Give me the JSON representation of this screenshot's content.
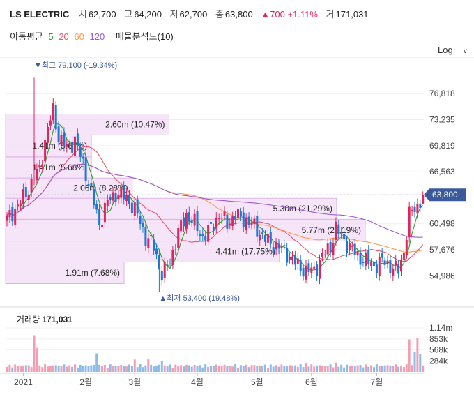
{
  "header": {
    "name": "LS ELECTRIC",
    "open_label": "시",
    "open": "62,700",
    "high_label": "고",
    "high": "64,200",
    "low_label": "저",
    "low": "62,700",
    "close_label": "종",
    "close": "63,800",
    "change": "▲700 +1.11%",
    "volume_label": "거",
    "volume": "171,031"
  },
  "indicators": {
    "ma_label": "이동평균",
    "ma5": "5",
    "ma20": "20",
    "ma60": "60",
    "ma120": "120",
    "profile_label": "매물분석도(10)"
  },
  "colors": {
    "up": "#e0245e",
    "down": "#1f77d4",
    "ma5": "#2ca02c",
    "ma20": "#e9546b",
    "ma60": "#ff9b4a",
    "ma120": "#9b59d0",
    "band": "#f3dcf7"
  },
  "scale_button": {
    "label": "Log",
    "icon": "chevron-down-icon"
  },
  "chart_data": {
    "type": "candlestick",
    "y_scale": "log",
    "yticks": [
      76818,
      73235,
      69819,
      66563,
      63800,
      60498,
      57676,
      54986
    ],
    "ytick_labels": [
      "76,818",
      "73,235",
      "69,819",
      "66,563",
      "63,800",
      "60,498",
      "57,676",
      "54,986"
    ],
    "current_price": "63,800",
    "x_labels": [
      "2021",
      "2월",
      "3월",
      "4월",
      "5월",
      "6월",
      "7월"
    ],
    "high_annotation": "최고 79,100 (-19.34%)",
    "low_annotation": "최저 53,400 (19.48%)",
    "volume_profile": [
      {
        "label": "1.91m (7.68%)",
        "lo": 54200,
        "hi": 56400,
        "share": 0.29
      },
      {
        "label": "4.41m (17.75%)",
        "lo": 56400,
        "hi": 58600,
        "share": 0.67
      },
      {
        "label": "5.77m (23.19%)",
        "lo": 58600,
        "hi": 61000,
        "share": 0.88
      },
      {
        "label": "5.30m (21.29%)",
        "lo": 61000,
        "hi": 63400,
        "share": 0.81
      },
      {
        "label": "2.06m (8.28%)",
        "lo": 63400,
        "hi": 65800,
        "share": 0.31
      },
      {
        "label": "1.41m (5.68%)",
        "lo": 65800,
        "hi": 68400,
        "share": 0.21
      },
      {
        "label": "1.41m (5.67%)",
        "lo": 68400,
        "hi": 71200,
        "share": 0.21
      },
      {
        "label": "2.60m (10.47%)",
        "lo": 71200,
        "hi": 74000,
        "share": 0.4
      }
    ],
    "anchors": [
      [
        0,
        61000
      ],
      [
        4,
        62500
      ],
      [
        8,
        64500
      ],
      [
        12,
        67000
      ],
      [
        15,
        72000
      ],
      [
        17,
        74500
      ],
      [
        19,
        71000
      ],
      [
        22,
        69500
      ],
      [
        25,
        70500
      ],
      [
        28,
        67500
      ],
      [
        31,
        64000
      ],
      [
        34,
        60500
      ],
      [
        37,
        63000
      ],
      [
        40,
        64000
      ],
      [
        44,
        63500
      ],
      [
        48,
        61500
      ],
      [
        51,
        59000
      ],
      [
        54,
        58000
      ],
      [
        57,
        55000
      ],
      [
        60,
        56500
      ],
      [
        63,
        59500
      ],
      [
        66,
        61500
      ],
      [
        69,
        60500
      ],
      [
        72,
        59000
      ],
      [
        75,
        60000
      ],
      [
        78,
        61500
      ],
      [
        81,
        60500
      ],
      [
        84,
        61500
      ],
      [
        87,
        61000
      ],
      [
        90,
        60500
      ],
      [
        93,
        59500
      ],
      [
        96,
        58500
      ],
      [
        100,
        58000
      ],
      [
        104,
        57000
      ],
      [
        107,
        56000
      ],
      [
        110,
        55500
      ],
      [
        113,
        55500
      ],
      [
        116,
        57000
      ],
      [
        119,
        58000
      ],
      [
        121,
        60000
      ],
      [
        123,
        59000
      ],
      [
        126,
        58000
      ],
      [
        129,
        57000
      ],
      [
        132,
        56500
      ],
      [
        135,
        56000
      ],
      [
        138,
        56500
      ],
      [
        141,
        56000
      ],
      [
        144,
        55500
      ],
      [
        146,
        57500
      ],
      [
        148,
        61500
      ],
      [
        151,
        62500
      ],
      [
        153,
        63800
      ]
    ],
    "volume_axis": [
      "1.14m",
      "853k",
      "568k",
      "284k"
    ],
    "volume_title": "거래량",
    "volume_value": "171,031",
    "volume_max": 1140000,
    "volume_spikes": [
      [
        10,
        950000
      ],
      [
        11,
        620000
      ],
      [
        33,
        480000
      ],
      [
        47,
        320000
      ],
      [
        52,
        330000
      ],
      [
        57,
        280000
      ],
      [
        110,
        220000
      ],
      [
        121,
        240000
      ],
      [
        148,
        840000
      ],
      [
        150,
        520000
      ],
      [
        151,
        880000
      ],
      [
        152,
        460000
      ]
    ]
  }
}
